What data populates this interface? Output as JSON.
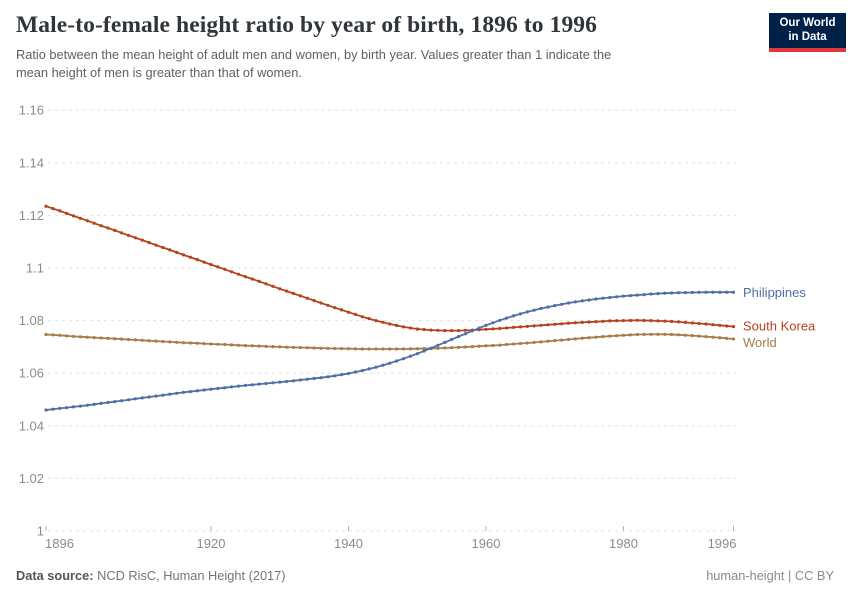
{
  "header": {
    "title": "Male-to-female height ratio by year of birth, 1896 to 1996",
    "subtitle_line1": "Ratio between the mean height of adult men and women, by birth year. Values greater than 1 indicate the",
    "subtitle_line2": "mean height of men is greater than that of women.",
    "logo": {
      "line1": "Our World",
      "line2": "in Data",
      "bg_color": "#002147",
      "accent_color": "#e0373f"
    }
  },
  "footer": {
    "source_label": "Data source:",
    "source_text": "NCD RisC, Human Height (2017)",
    "license": "human-height | CC BY"
  },
  "chart_data": {
    "type": "line",
    "title": "Male-to-female height ratio by year of birth, 1896 to 1996",
    "xlabel": "",
    "ylabel": "",
    "xlim": [
      1896,
      1996
    ],
    "ylim": [
      1,
      1.16
    ],
    "grid": "horizontal-dashed",
    "legend_position": "right-of-line-ends",
    "xticks": [
      1896,
      1920,
      1940,
      1960,
      1980,
      1996
    ],
    "yticks": [
      1,
      1.02,
      1.04,
      1.06,
      1.08,
      1.1,
      1.12,
      1.14,
      1.16
    ],
    "ytick_labels": [
      "1",
      "1.02",
      "1.04",
      "1.06",
      "1.08",
      "1.1",
      "1.12",
      "1.14",
      "1.16"
    ],
    "x": [
      1896,
      1898,
      1900,
      1902,
      1904,
      1906,
      1908,
      1910,
      1912,
      1914,
      1916,
      1918,
      1920,
      1922,
      1924,
      1926,
      1928,
      1930,
      1932,
      1934,
      1936,
      1938,
      1940,
      1942,
      1944,
      1946,
      1948,
      1950,
      1952,
      1954,
      1956,
      1958,
      1960,
      1962,
      1964,
      1966,
      1968,
      1970,
      1972,
      1974,
      1976,
      1978,
      1980,
      1982,
      1984,
      1986,
      1988,
      1990,
      1992,
      1994,
      1996
    ],
    "series": [
      {
        "name": "Philippines",
        "color": "#4e6fa6",
        "values": [
          1.046,
          1.0466,
          1.0472,
          1.0478,
          1.0485,
          1.0492,
          1.0499,
          1.0506,
          1.0513,
          1.052,
          1.0527,
          1.0533,
          1.0539,
          1.0545,
          1.0551,
          1.0556,
          1.0561,
          1.0566,
          1.0571,
          1.0577,
          1.0583,
          1.059,
          1.0599,
          1.061,
          1.0623,
          1.0638,
          1.0655,
          1.0674,
          1.0695,
          1.0717,
          1.0739,
          1.0761,
          1.0782,
          1.0801,
          1.0818,
          1.0833,
          1.0846,
          1.0857,
          1.0867,
          1.0875,
          1.0882,
          1.0888,
          1.0893,
          1.0897,
          1.0901,
          1.0904,
          1.0906,
          1.0907,
          1.0908,
          1.0908,
          1.0908
        ]
      },
      {
        "name": "South Korea",
        "color": "#b5421e",
        "values": [
          1.1235,
          1.1217,
          1.1198,
          1.118,
          1.1161,
          1.1143,
          1.1124,
          1.1106,
          1.1087,
          1.1069,
          1.105,
          1.1032,
          1.1013,
          1.0995,
          1.0976,
          1.0958,
          1.094,
          1.0921,
          1.0903,
          1.0885,
          1.0867,
          1.0849,
          1.0832,
          1.0815,
          1.08,
          1.0787,
          1.0776,
          1.0768,
          1.0764,
          1.0762,
          1.0762,
          1.0764,
          1.0767,
          1.077,
          1.0774,
          1.0778,
          1.0782,
          1.0786,
          1.079,
          1.0793,
          1.0796,
          1.0799,
          1.08,
          1.0801,
          1.08,
          1.0798,
          1.0795,
          1.0791,
          1.0787,
          1.0782,
          1.0777
        ]
      },
      {
        "name": "World",
        "color": "#a57d48",
        "values": [
          1.0747,
          1.0744,
          1.074,
          1.0737,
          1.0734,
          1.0731,
          1.0728,
          1.0725,
          1.0722,
          1.0719,
          1.0716,
          1.0714,
          1.0711,
          1.0709,
          1.0706,
          1.0704,
          1.0702,
          1.07,
          1.0698,
          1.0697,
          1.0695,
          1.0694,
          1.0693,
          1.0692,
          1.0692,
          1.0692,
          1.0692,
          1.0693,
          1.0694,
          1.0696,
          1.0698,
          1.0701,
          1.0704,
          1.0707,
          1.0711,
          1.0715,
          1.0719,
          1.0724,
          1.0728,
          1.0733,
          1.0737,
          1.0741,
          1.0744,
          1.0747,
          1.0748,
          1.0748,
          1.0746,
          1.0743,
          1.0739,
          1.0735,
          1.073
        ]
      }
    ],
    "style": {
      "gridline_color": "#e0e0e0",
      "tick_label_color": "#8c8c8c",
      "axis_tick_color": "#b5b5b5"
    }
  }
}
